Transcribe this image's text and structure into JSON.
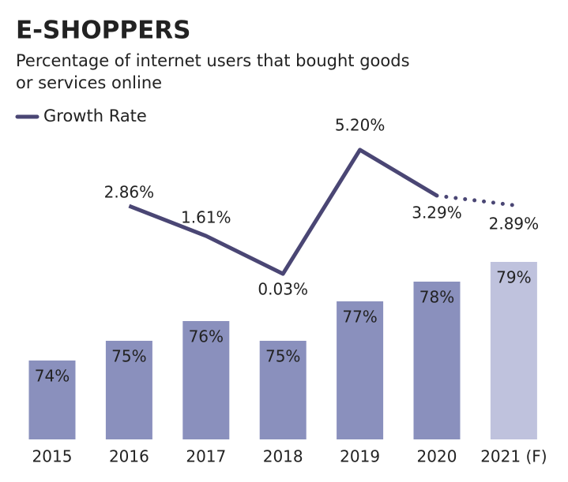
{
  "chart_data": {
    "type": "bar-line",
    "title": "E-SHOPPERS",
    "subtitle": [
      "Percentage of internet users that bought goods",
      "or services online"
    ],
    "categories": [
      "2015",
      "2016",
      "2017",
      "2018",
      "2019",
      "2020",
      "2021 (F)"
    ],
    "ylim": [
      70,
      80
    ],
    "y2lim": [
      0,
      6
    ],
    "series": [
      {
        "type": "bar",
        "colors": [
          "#8a90bd",
          "#8a90bd",
          "#8a90bd",
          "#8a90bd",
          "#8a90bd",
          "#8a90bd",
          "#bfc2dd"
        ],
        "values": [
          74,
          75,
          76,
          75,
          77,
          78,
          79
        ],
        "value_labels": [
          "74%",
          "75%",
          "76%",
          "75%",
          "77%",
          "78%",
          "79%"
        ]
      },
      {
        "type": "line",
        "name": "Growth Rate",
        "color": "#4a4674",
        "axis": "y2",
        "dashed_last_segment": true,
        "values": [
          null,
          2.86,
          1.61,
          0.03,
          5.2,
          3.29,
          2.89
        ],
        "value_labels": [
          null,
          "2.86%",
          "1.61%",
          "0.03%",
          "5.20%",
          "3.29%",
          "2.89%"
        ]
      }
    ]
  }
}
